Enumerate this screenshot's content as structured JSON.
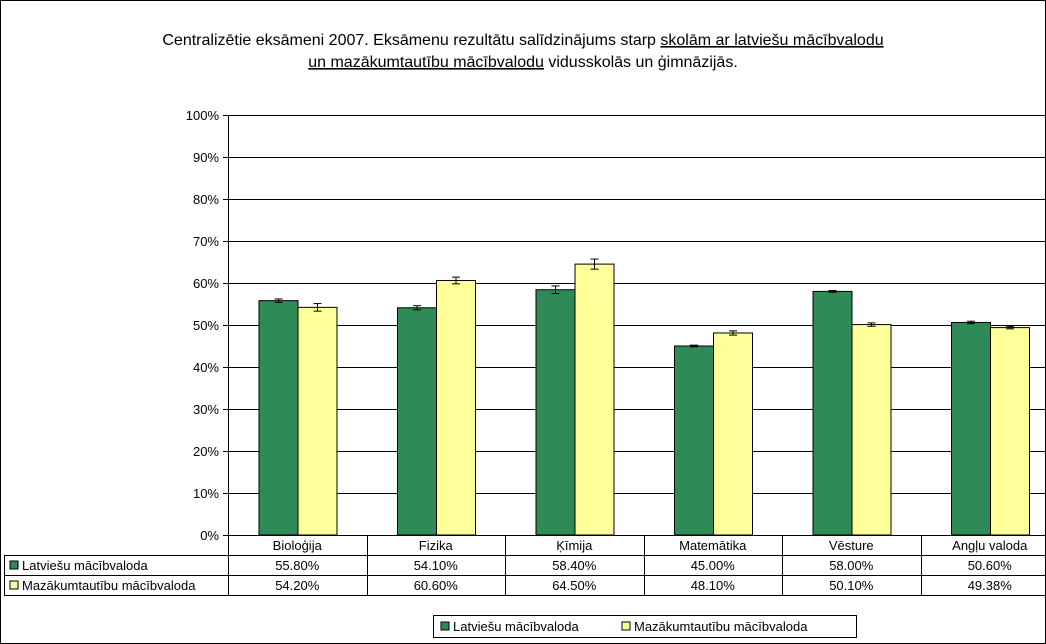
{
  "chart_data": {
    "type": "bar",
    "title_parts": [
      {
        "text": "Centralizētie eksāmeni 2007. Eksāmenu rezultātu salīdzinājums starp ",
        "underline": false
      },
      {
        "text": "skolām ar latviešu mācībvalodu ",
        "underline": true
      },
      {
        "text": "un mazākumtautību mācībvalodu",
        "underline": true
      },
      {
        "text": " vidusskolās un ģimnāzijās.",
        "underline": false
      }
    ],
    "categories": [
      "Bioloģija",
      "Fizika",
      "Ķīmija",
      "Matemātika",
      "Vēsture",
      "Angļu valoda"
    ],
    "y_ticks": [
      "0%",
      "10%",
      "20%",
      "30%",
      "40%",
      "50%",
      "60%",
      "70%",
      "80%",
      "90%",
      "100%"
    ],
    "ylim": [
      0,
      100
    ],
    "grid": true,
    "legend_position": "bottom",
    "series": [
      {
        "name": "Latviešu mācībvaloda",
        "color": "#2e8b57",
        "values": [
          55.8,
          54.1,
          58.4,
          45.0,
          58.0,
          50.6
        ],
        "labels": [
          "55.80%",
          "54.10%",
          "58.40%",
          "45.00%",
          "58.00%",
          "50.60%"
        ],
        "errors": [
          0.4,
          0.5,
          0.9,
          0.2,
          0.2,
          0.3
        ]
      },
      {
        "name": "Mazākumtautību mācībvaloda",
        "color": "#ffff99",
        "values": [
          54.2,
          60.6,
          64.5,
          48.1,
          50.1,
          49.38
        ],
        "labels": [
          "54.20%",
          "60.60%",
          "64.50%",
          "48.10%",
          "50.10%",
          "49.38%"
        ],
        "errors": [
          0.9,
          0.8,
          1.2,
          0.5,
          0.4,
          0.3
        ]
      }
    ]
  }
}
